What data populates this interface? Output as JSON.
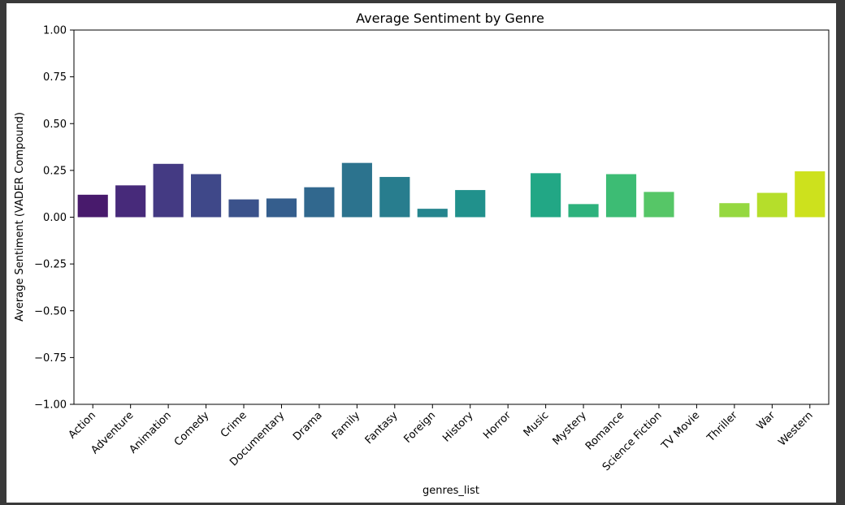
{
  "chart_data": {
    "type": "bar",
    "title": "Average Sentiment by Genre",
    "xlabel": "genres_list",
    "ylabel": "Average Sentiment (VADER Compound)",
    "ylim": [
      -1.0,
      1.0
    ],
    "yticks": [
      1.0,
      0.75,
      0.5,
      0.25,
      0.0,
      -0.25,
      -0.5,
      -0.75,
      -1.0
    ],
    "ytick_labels": [
      "1.00",
      "0.75",
      "0.50",
      "0.25",
      "0.00",
      "−0.25",
      "−0.50",
      "−0.75",
      "−1.00"
    ],
    "categories": [
      "Action",
      "Adventure",
      "Animation",
      "Comedy",
      "Crime",
      "Documentary",
      "Drama",
      "Family",
      "Fantasy",
      "Foreign",
      "History",
      "Horror",
      "Music",
      "Mystery",
      "Romance",
      "Science Fiction",
      "TV Movie",
      "Thriller",
      "War",
      "Western"
    ],
    "values": [
      0.12,
      0.17,
      0.285,
      0.23,
      0.095,
      0.1,
      0.16,
      0.29,
      0.215,
      0.045,
      0.145,
      0.0,
      0.235,
      0.07,
      0.23,
      0.135,
      0.0,
      0.075,
      0.13,
      0.245
    ],
    "colors": [
      "#481a6c",
      "#472a7a",
      "#443a83",
      "#3f4889",
      "#3b528b",
      "#355e8d",
      "#31688e",
      "#2c738e",
      "#287d8e",
      "#25858e",
      "#21918c",
      "#1e9b8a",
      "#22a785",
      "#2db27d",
      "#3dbc74",
      "#56c667",
      "#75d054",
      "#95d840",
      "#b5de2b",
      "#cde11d"
    ],
    "grid": false,
    "legend": "none"
  }
}
